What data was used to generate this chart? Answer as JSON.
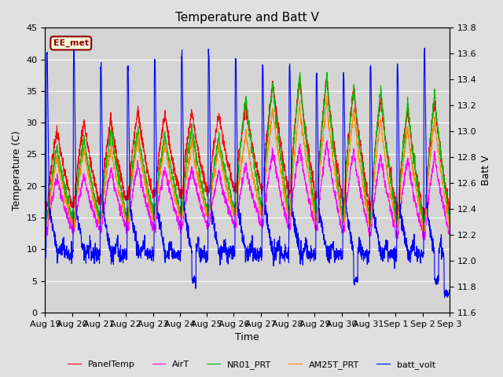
{
  "title": "Temperature and Batt V",
  "xlabel": "Time",
  "ylabel_left": "Temperature (C)",
  "ylabel_right": "Batt V",
  "xlim": [
    0,
    15
  ],
  "ylim_left": [
    0,
    45
  ],
  "ylim_right": [
    11.6,
    13.8
  ],
  "xtick_labels": [
    "Aug 19",
    "Aug 20",
    "Aug 21",
    "Aug 22",
    "Aug 23",
    "Aug 24",
    "Aug 25",
    "Aug 26",
    "Aug 27",
    "Aug 28",
    "Aug 29",
    "Aug 30",
    "Aug 31",
    "Sep 1",
    "Sep 2",
    "Sep 3"
  ],
  "xtick_positions": [
    0,
    1,
    2,
    3,
    4,
    5,
    6,
    7,
    8,
    9,
    10,
    11,
    12,
    13,
    14,
    15
  ],
  "yticks_left": [
    0,
    5,
    10,
    15,
    20,
    25,
    30,
    35,
    40,
    45
  ],
  "yticks_right": [
    11.6,
    11.8,
    12.0,
    12.2,
    12.4,
    12.6,
    12.8,
    13.0,
    13.2,
    13.4,
    13.6,
    13.8
  ],
  "colors": {
    "PanelTemp": "#ff0000",
    "AirT": "#ff00ff",
    "NR01_PRT": "#00bb00",
    "AM25T_PRT": "#ff8800",
    "batt_volt": "#0000ff"
  },
  "legend_label": "EE_met",
  "bg_color": "#e0e0e0",
  "plot_bg_color": "#d4d4d4",
  "grid_color": "#ffffff",
  "title_fontsize": 11,
  "label_fontsize": 9,
  "tick_fontsize": 8
}
